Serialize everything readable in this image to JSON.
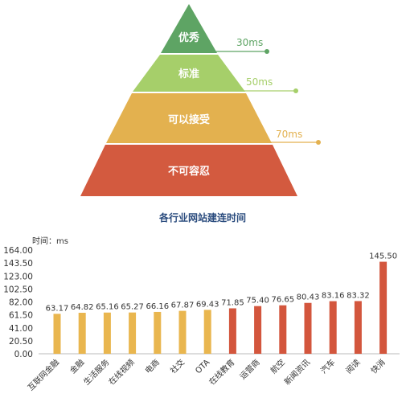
{
  "pyramid": {
    "levels": [
      {
        "label": "优秀",
        "color": "#5ea464",
        "threshold": "30ms",
        "threshold_color": "#5ea464"
      },
      {
        "label": "标准",
        "color": "#a6cf6a",
        "threshold": "50ms",
        "threshold_color": "#a6cf6a"
      },
      {
        "label": "可以接受",
        "color": "#e3b14f",
        "threshold": "70ms",
        "threshold_color": "#e3b14f"
      },
      {
        "label": "不可容忍",
        "color": "#d35a3f",
        "threshold": "",
        "threshold_color": ""
      }
    ]
  },
  "chart_data": {
    "type": "bar",
    "title": "各行业网站建连时间",
    "ylabel": "时间：ms",
    "xlabel": "",
    "ylim": [
      0,
      164
    ],
    "yticks": [
      "164.00",
      "143.50",
      "123.00",
      "102.50",
      "82.00",
      "61.50",
      "41.00",
      "20.50",
      "0.00"
    ],
    "grid": false,
    "categories": [
      "互联网金融",
      "金融",
      "生活服务",
      "在线视频",
      "电商",
      "社交",
      "OTA",
      "在线教育",
      "运营商",
      "航空",
      "新闻资讯",
      "汽车",
      "阅读",
      "快消"
    ],
    "values": [
      63.17,
      64.82,
      65.16,
      65.27,
      66.16,
      67.87,
      69.43,
      71.85,
      75.4,
      76.65,
      80.43,
      83.16,
      83.32,
      145.5
    ],
    "value_labels": [
      "63.17",
      "64.82",
      "65.16",
      "65.27",
      "66.16",
      "67.87",
      "69.43",
      "71.85",
      "75.40",
      "76.65",
      "80.43",
      "83.16",
      "83.32",
      "145.50"
    ],
    "bar_colors": [
      "#e9b64f",
      "#e9b64f",
      "#e9b64f",
      "#e9b64f",
      "#e9b64f",
      "#e9b64f",
      "#e9b64f",
      "#d3563d",
      "#d3563d",
      "#d3563d",
      "#d3563d",
      "#d3563d",
      "#d3563d",
      "#d3563d"
    ]
  }
}
